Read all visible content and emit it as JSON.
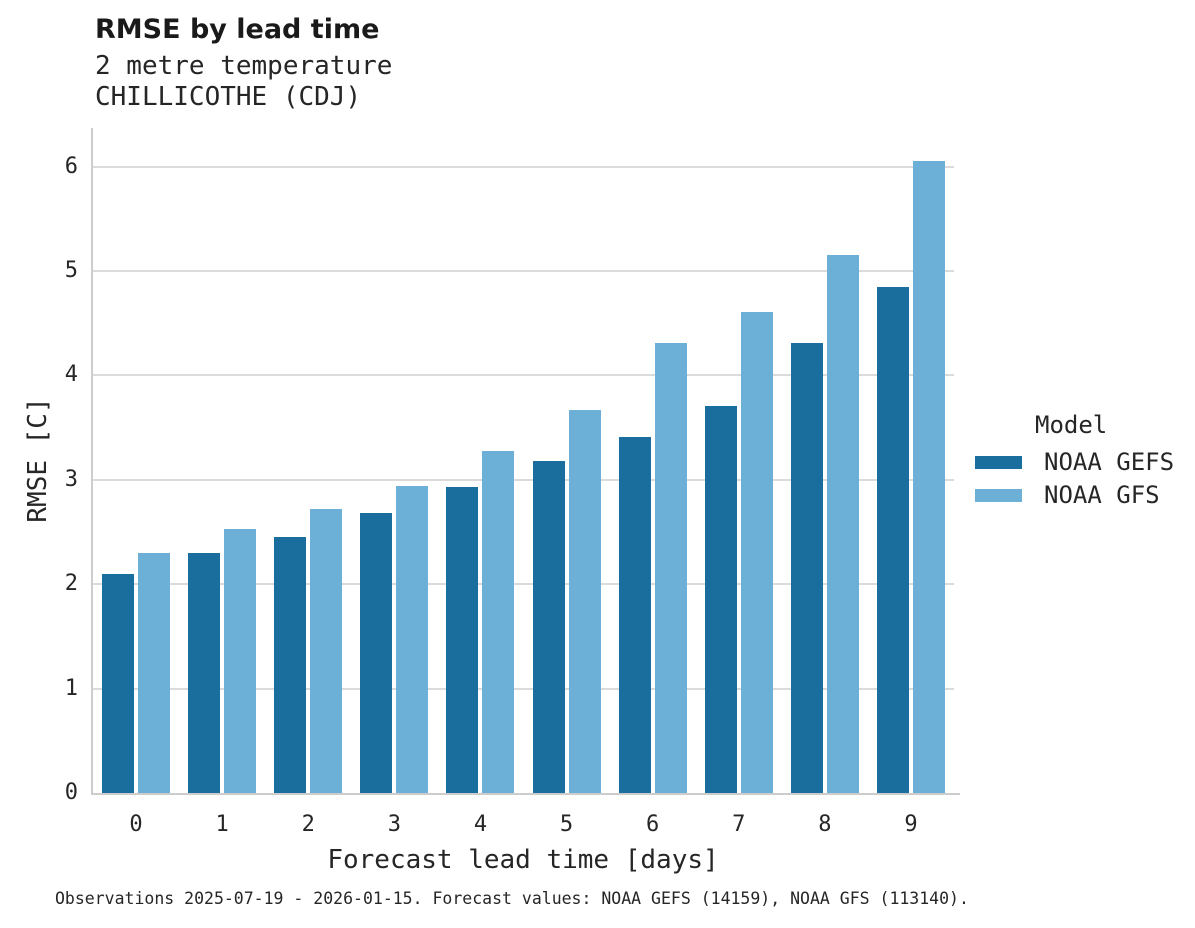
{
  "header": {
    "title": "RMSE by lead time",
    "subtitle1": "2 metre temperature",
    "subtitle2": "CHILLICOTHE (CDJ)"
  },
  "footer": {
    "caption": "Observations 2025-07-19 - 2026-01-15. Forecast values: NOAA GEFS (14159), NOAA GFS (113140)."
  },
  "chart_data": {
    "type": "bar",
    "title": "RMSE by lead time",
    "subtitle": [
      "2 metre temperature",
      "CHILLICOTHE (CDJ)"
    ],
    "xlabel": "Forecast lead time [days]",
    "ylabel": "RMSE [C]",
    "categories": [
      0,
      1,
      2,
      3,
      4,
      5,
      6,
      7,
      8,
      9
    ],
    "series": [
      {
        "name": "NOAA GEFS",
        "color": "#1A6E9D",
        "values": [
          2.1,
          2.3,
          2.45,
          2.68,
          2.93,
          3.18,
          3.41,
          3.71,
          4.31,
          4.85
        ]
      },
      {
        "name": "NOAA GFS",
        "color": "#6CB0D8",
        "values": [
          2.3,
          2.53,
          2.72,
          2.94,
          3.28,
          3.67,
          4.31,
          4.61,
          5.15,
          6.05
        ]
      }
    ],
    "ylim": [
      0,
      6.37
    ],
    "yticks": [
      0,
      1,
      2,
      3,
      4,
      5,
      6
    ],
    "grid": "horizontal",
    "legend_title": "Model",
    "legend_position": "right",
    "caption": "Observations 2025-07-19 - 2026-01-15. Forecast values: NOAA GEFS (14159), NOAA GFS (113140)."
  },
  "colors": {
    "grid": "#DBDBDB",
    "spine": "#CCCCCC",
    "text": "#262626",
    "gefs_blue": "#1A6E9D",
    "gfs_blue": "#6CB0D8"
  }
}
